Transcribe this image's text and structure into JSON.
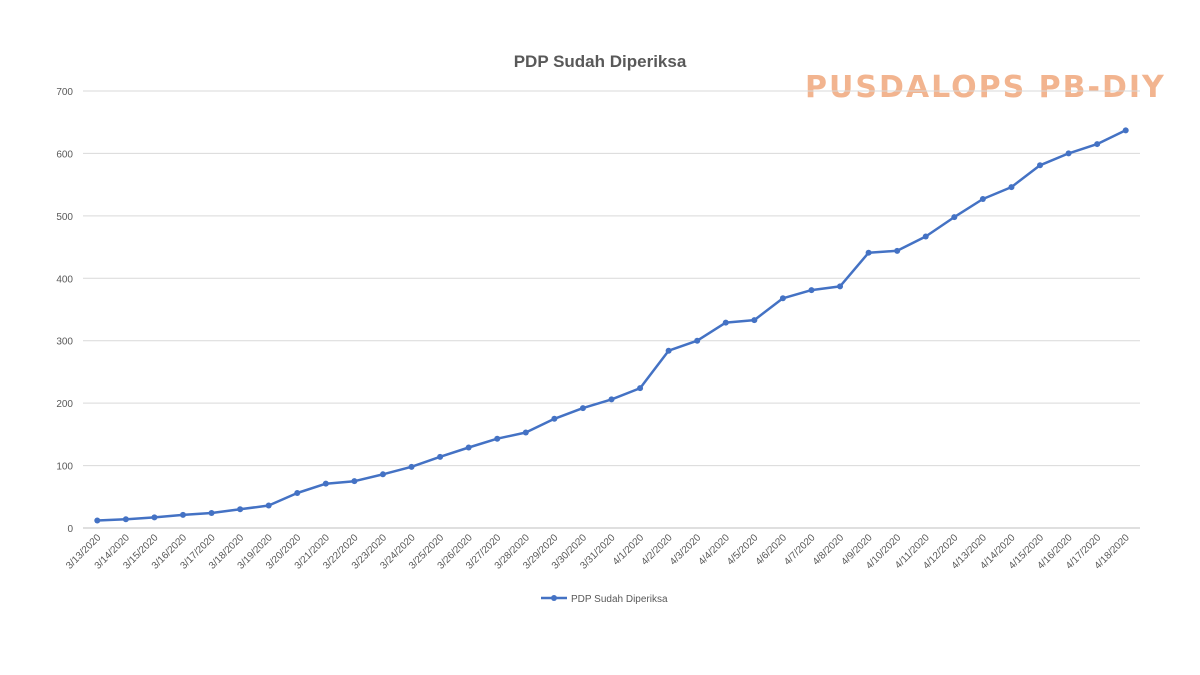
{
  "watermark": "PUSDALOPS PB-DIY",
  "chart_data": {
    "type": "line",
    "title": "PDP Sudah Diperiksa",
    "xlabel": "",
    "ylabel": "",
    "ylim": [
      0,
      700
    ],
    "yticks": [
      0,
      100,
      200,
      300,
      400,
      500,
      600,
      700
    ],
    "grid": true,
    "legend_position": "bottom",
    "categories": [
      "3/13/2020",
      "3/14/2020",
      "3/15/2020",
      "3/16/2020",
      "3/17/2020",
      "3/18/2020",
      "3/19/2020",
      "3/20/2020",
      "3/21/2020",
      "3/22/2020",
      "3/23/2020",
      "3/24/2020",
      "3/25/2020",
      "3/26/2020",
      "3/27/2020",
      "3/28/2020",
      "3/29/2020",
      "3/30/2020",
      "3/31/2020",
      "4/1/2020",
      "4/2/2020",
      "4/3/2020",
      "4/4/2020",
      "4/5/2020",
      "4/6/2020",
      "4/7/2020",
      "4/8/2020",
      "4/9/2020",
      "4/10/2020",
      "4/11/2020",
      "4/12/2020",
      "4/13/2020",
      "4/14/2020",
      "4/15/2020",
      "4/16/2020",
      "4/17/2020",
      "4/18/2020"
    ],
    "series": [
      {
        "name": "PDP Sudah Diperiksa",
        "color": "#4472c4",
        "values": [
          12,
          14,
          17,
          21,
          24,
          30,
          36,
          56,
          71,
          75,
          86,
          98,
          114,
          129,
          143,
          153,
          175,
          192,
          206,
          224,
          284,
          300,
          329,
          333,
          368,
          381,
          387,
          441,
          444,
          467,
          498,
          527,
          546,
          581,
          600,
          615,
          637
        ]
      }
    ]
  }
}
